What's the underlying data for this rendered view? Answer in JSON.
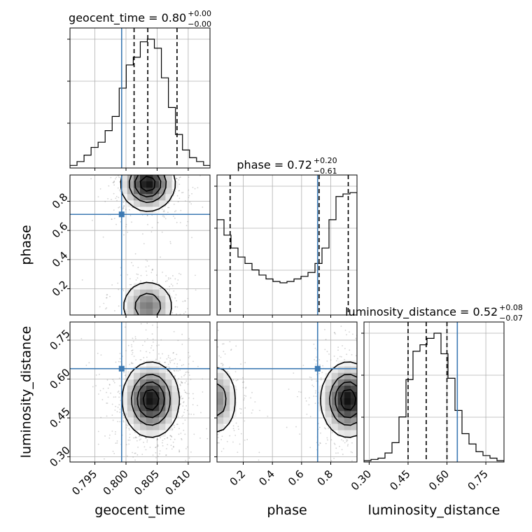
{
  "chart_data": {
    "type": "corner",
    "colors": {
      "truth": "#3d7ab3",
      "hist": "#000000",
      "grid": "#b0b0b0",
      "sample": "#7f7f7f"
    },
    "parameters": [
      {
        "name": "geocent_time",
        "xlabel": "geocent_time",
        "ylabel": "",
        "range": [
          0.791,
          0.8135
        ],
        "ticks": [
          0.795,
          0.8,
          0.805,
          0.81
        ],
        "tick_labels": [
          "0.795",
          "0.800",
          "0.805",
          "0.810"
        ],
        "truth": 0.7993,
        "quantiles": [
          0.8013,
          0.8035,
          0.8082
        ],
        "title": {
          "main": "geocent_time = 0.80",
          "sup": "+0.00",
          "sub": "−0.00"
        },
        "hist": {
          "edges_start": 0.791,
          "bin_width": 0.00113,
          "counts": [
            0.02,
            0.05,
            0.1,
            0.16,
            0.2,
            0.29,
            0.4,
            0.62,
            0.8,
            0.86,
            0.98,
            1.0,
            0.93,
            0.7,
            0.47,
            0.26,
            0.14,
            0.08,
            0.05,
            0.02
          ]
        }
      },
      {
        "name": "phase",
        "xlabel": "phase",
        "ylabel": "phase",
        "range": [
          0.02,
          0.98
        ],
        "ticks": [
          0.2,
          0.4,
          0.6,
          0.8
        ],
        "tick_labels": [
          "0.2",
          "0.4",
          "0.6",
          "0.8"
        ],
        "truth": 0.71,
        "quantiles": [
          0.11,
          0.72,
          0.92
        ],
        "title": {
          "main": "phase = 0.72",
          "sup": "+0.20",
          "sub": "−0.61"
        },
        "hist": {
          "edges_start": 0.02,
          "bin_width": 0.048,
          "counts": [
            0.74,
            0.62,
            0.52,
            0.45,
            0.4,
            0.35,
            0.31,
            0.28,
            0.26,
            0.25,
            0.26,
            0.28,
            0.3,
            0.33,
            0.4,
            0.52,
            0.74,
            0.92,
            0.94,
            0.95
          ]
        }
      },
      {
        "name": "luminosity_distance",
        "xlabel": "luminosity_distance",
        "ylabel": "luminosity_distance",
        "range": [
          0.28,
          0.82
        ],
        "ticks": [
          0.3,
          0.45,
          0.6,
          0.75
        ],
        "tick_labels": [
          "0.30",
          "0.45",
          "0.60",
          "0.75"
        ],
        "truth": 0.64,
        "quantiles": [
          0.45,
          0.52,
          0.6
        ],
        "title": {
          "main": "luminosity_distance = 0.52",
          "sup": "+0.08",
          "sub": "−0.07"
        },
        "hist": {
          "edges_start": 0.28,
          "bin_width": 0.027,
          "counts": [
            0.01,
            0.02,
            0.03,
            0.07,
            0.15,
            0.35,
            0.64,
            0.86,
            0.91,
            0.96,
            1.0,
            0.84,
            0.65,
            0.4,
            0.22,
            0.14,
            0.08,
            0.05,
            0.03,
            0.01
          ]
        }
      }
    ],
    "pairs": [
      {
        "x": 0,
        "y": 1,
        "truth": [
          0.7993,
          0.71
        ],
        "modes": [
          {
            "cx": 0.8035,
            "cy": 0.92,
            "sx": 0.0021,
            "sy": 0.09,
            "w": 1.0
          },
          {
            "cx": 0.8035,
            "cy": 0.08,
            "sx": 0.0021,
            "sy": 0.09,
            "w": 0.6
          }
        ]
      },
      {
        "x": 0,
        "y": 2,
        "truth": [
          0.7993,
          0.64
        ],
        "modes": [
          {
            "cx": 0.804,
            "cy": 0.52,
            "sx": 0.0022,
            "sy": 0.07,
            "w": 1.0
          }
        ]
      },
      {
        "x": 1,
        "y": 2,
        "truth": [
          0.71,
          0.64
        ],
        "modes": [
          {
            "cx": 0.92,
            "cy": 0.52,
            "sx": 0.09,
            "sy": 0.07,
            "w": 1.0
          },
          {
            "cx": 0.02,
            "cy": 0.52,
            "sx": 0.07,
            "sy": 0.07,
            "w": 0.55
          }
        ]
      }
    ]
  }
}
